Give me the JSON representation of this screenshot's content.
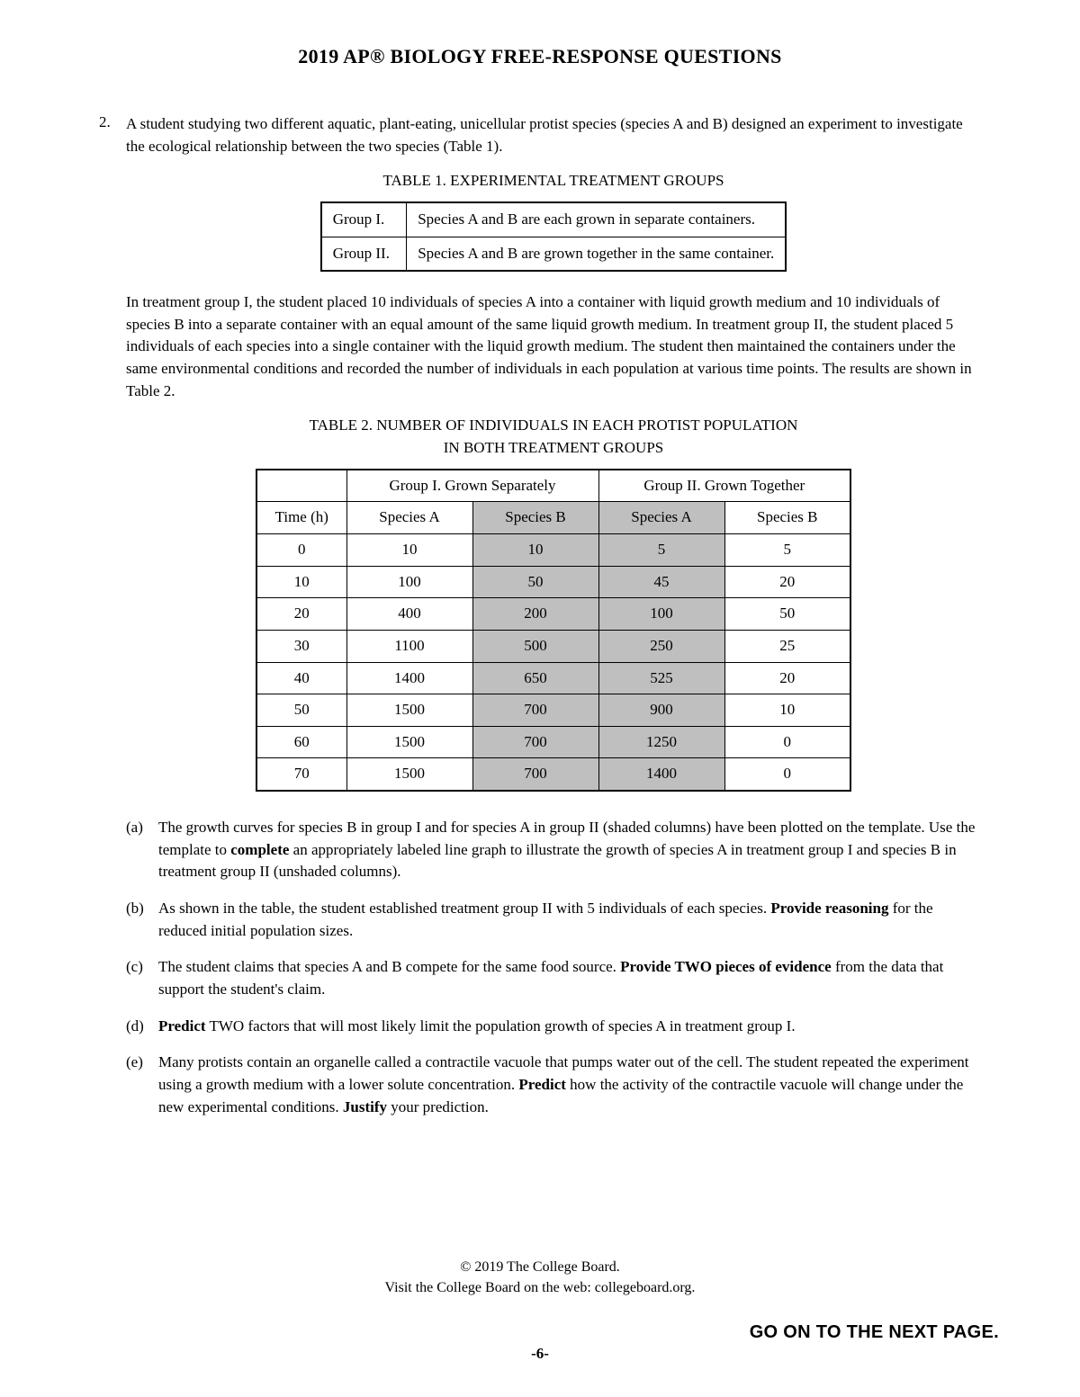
{
  "header": {
    "title": "2019 AP® BIOLOGY FREE-RESPONSE QUESTIONS"
  },
  "question": {
    "number": "2.",
    "intro": "A student studying two different aquatic, plant-eating, unicellular protist species (species A and B) designed an experiment to investigate the ecological relationship between the two species (Table 1).",
    "table1": {
      "caption": "TABLE 1. EXPERIMENTAL TREATMENT GROUPS",
      "rows": [
        {
          "group": "Group I.",
          "desc": "Species A and B are each grown in separate containers."
        },
        {
          "group": "Group II.",
          "desc": "Species A and B are grown together in the same container."
        }
      ]
    },
    "middle_para": "In treatment group I, the student placed 10 individuals of species A into a container with liquid growth medium and 10 individuals of species B into a separate container with an equal amount of the same liquid growth medium. In treatment group II, the student placed 5 individuals of each species into a single container with the liquid growth medium. The student then maintained the containers under the same environmental conditions and recorded the number of individuals in each population at various time points. The results are shown in Table 2.",
    "table2": {
      "caption_l1": "TABLE 2. NUMBER OF INDIVIDUALS IN EACH PROTIST POPULATION",
      "caption_l2": "IN BOTH TREATMENT GROUPS",
      "group_headers": [
        "Group I. Grown Separately",
        "Group II. Grown Together"
      ],
      "col_headers": [
        "Time (h)",
        "Species A",
        "Species B",
        "Species A",
        "Species B"
      ],
      "shaded_cols": [
        false,
        false,
        true,
        true,
        false
      ],
      "rows": [
        [
          "0",
          "10",
          "10",
          "5",
          "5"
        ],
        [
          "10",
          "100",
          "50",
          "45",
          "20"
        ],
        [
          "20",
          "400",
          "200",
          "100",
          "50"
        ],
        [
          "30",
          "1100",
          "500",
          "250",
          "25"
        ],
        [
          "40",
          "1400",
          "650",
          "525",
          "20"
        ],
        [
          "50",
          "1500",
          "700",
          "900",
          "10"
        ],
        [
          "60",
          "1500",
          "700",
          "1250",
          "0"
        ],
        [
          "70",
          "1500",
          "700",
          "1400",
          "0"
        ]
      ]
    },
    "subparts": [
      {
        "label": "(a)",
        "text_pre": "The growth curves for species B in group I and for species A in group II (shaded columns) have been plotted on the template. Use the template to ",
        "bold1": "complete",
        "text_post": " an appropriately labeled line graph to illustrate the growth of species A in treatment group I and species B in treatment group II (unshaded columns)."
      },
      {
        "label": "(b)",
        "text_pre": "As shown in the table, the student established treatment group II with 5 individuals of each species. ",
        "bold1": "Provide reasoning",
        "text_post": " for the reduced initial population sizes."
      },
      {
        "label": "(c)",
        "text_pre": "The student claims that species A and B compete for the same food source. ",
        "bold1": "Provide TWO pieces of evidence",
        "text_post": " from the data that support the student's claim."
      },
      {
        "label": "(d)",
        "text_pre": "",
        "bold1": "Predict",
        "text_post": " TWO factors that will most likely limit the population growth of species A in treatment group I."
      },
      {
        "label": "(e)",
        "text_pre": "Many protists contain an organelle called a contractile vacuole that pumps water out of the cell. The student repeated the experiment using a growth medium with a lower solute concentration. ",
        "bold1": "Predict",
        "text_mid": " how the activity of the contractile vacuole will change under the new experimental conditions. ",
        "bold2": "Justify",
        "text_post": " your prediction."
      }
    ]
  },
  "footer": {
    "copyright": "© 2019 The College Board.",
    "visit": "Visit the College Board on the web: collegeboard.org.",
    "page_number": "-6-",
    "go_on": "GO ON TO THE NEXT PAGE."
  },
  "style": {
    "shaded_bg": "#bfbfbf",
    "text_color": "#000000",
    "page_bg": "#ffffff"
  }
}
